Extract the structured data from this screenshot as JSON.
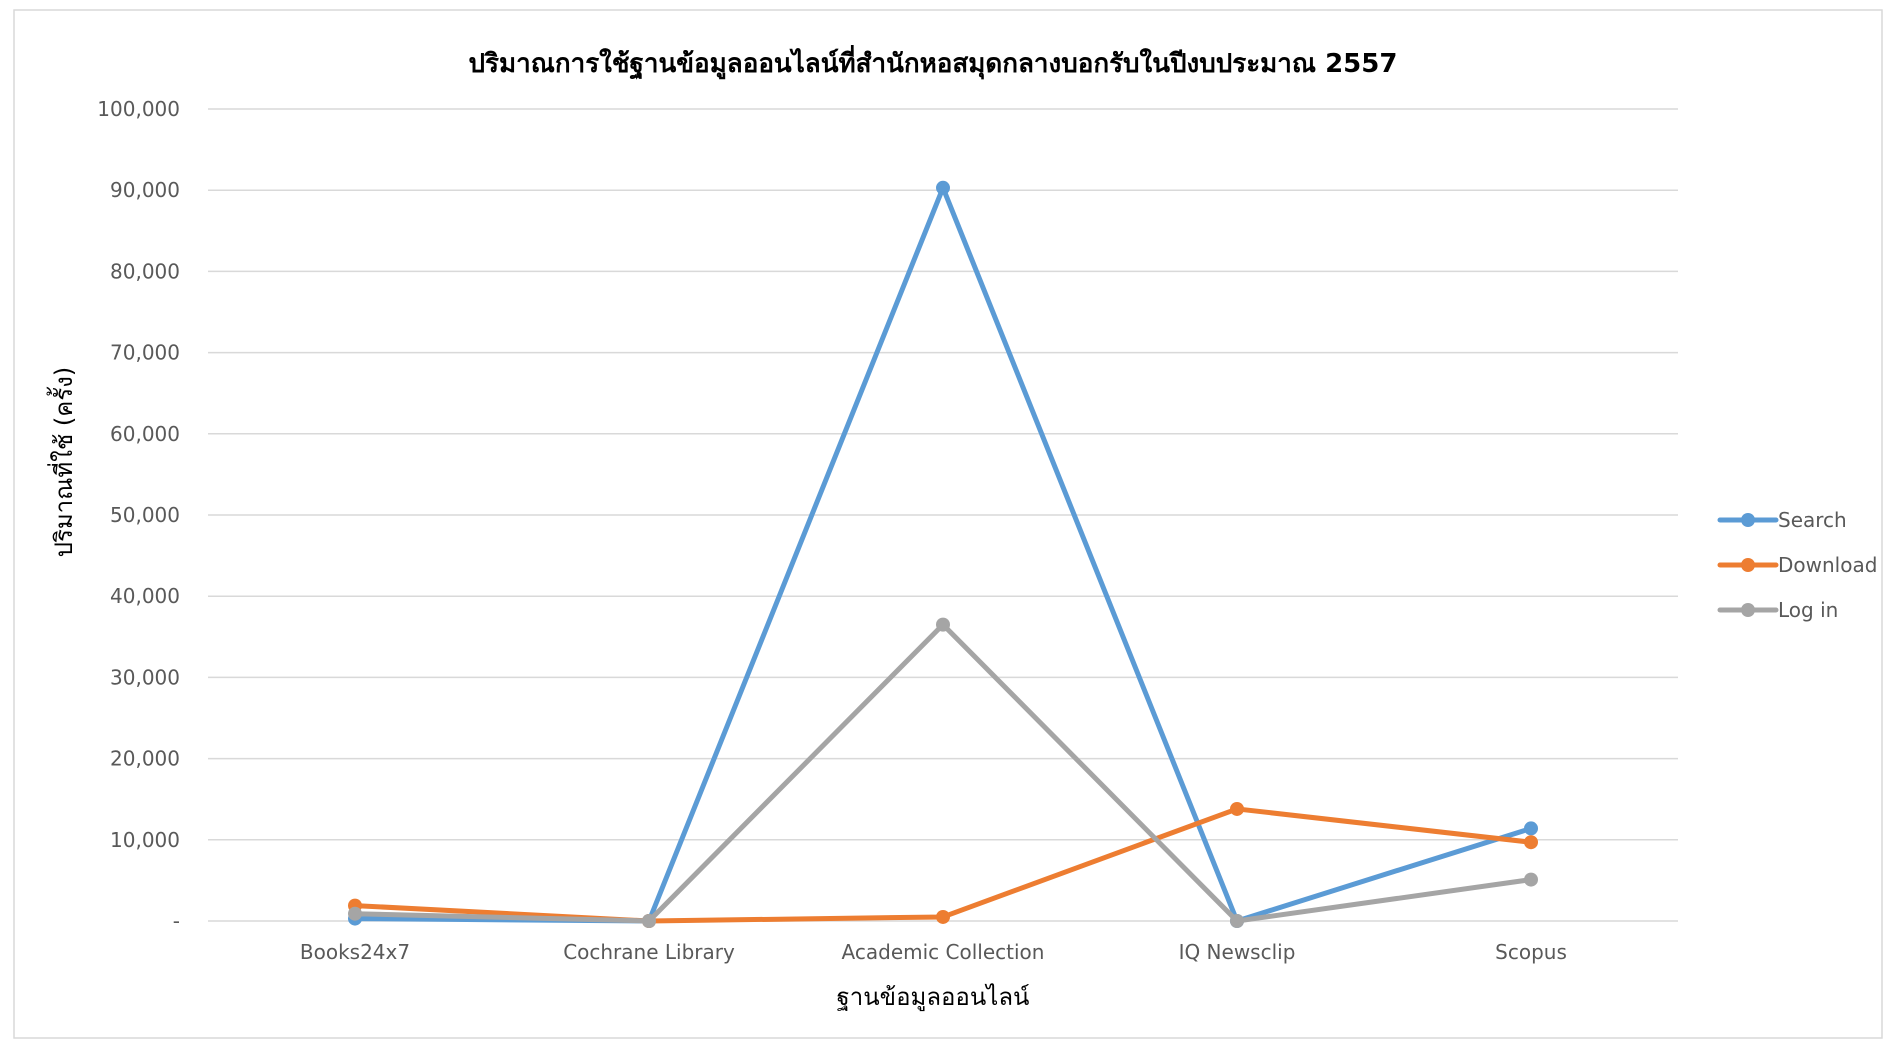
{
  "chart_data": {
    "type": "line",
    "title": "ปริมาณการใช้ฐานข้อมูลออนไลน์ที่สำนักหอสมุดกลางบอกรับในปีงบประมาณ 2557",
    "xlabel": "ฐานข้อมูลออนไลน์",
    "ylabel": "ปริมาณที่ใช้ (ครั้ง)",
    "categories": [
      "Books24x7",
      "Cochrane Library",
      "Academic Collection",
      "IQ Newsclip",
      "Scopus"
    ],
    "ylim": [
      0,
      100000
    ],
    "yticks": [
      0,
      10000,
      20000,
      30000,
      40000,
      50000,
      60000,
      70000,
      80000,
      90000,
      100000
    ],
    "ytick_labels": [
      "-",
      "10,000",
      "20,000",
      "30,000",
      "40,000",
      "50,000",
      "60,000",
      "70,000",
      "80,000",
      "90,000",
      "100,000"
    ],
    "grid": true,
    "legend_position": "right",
    "series": [
      {
        "name": "Search",
        "color": "#5B9BD5",
        "values": [
          300,
          0,
          90300,
          0,
          11400
        ]
      },
      {
        "name": "Download",
        "color": "#ED7D31",
        "values": [
          1900,
          0,
          500,
          13800,
          9700
        ]
      },
      {
        "name": "Log in",
        "color": "#A5A5A5",
        "values": [
          900,
          0,
          36500,
          0,
          5100
        ]
      }
    ]
  }
}
